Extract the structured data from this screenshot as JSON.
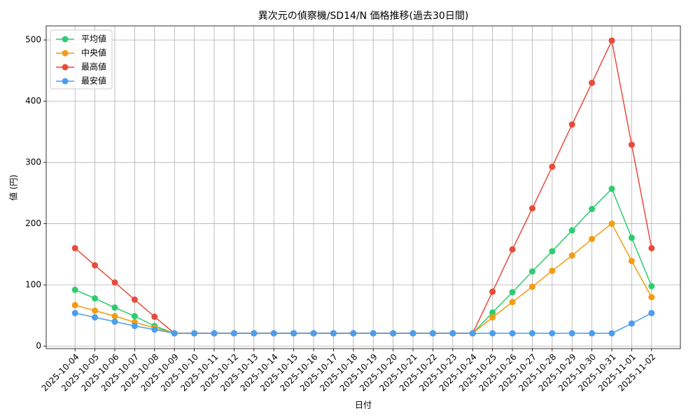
{
  "chart_data": {
    "type": "line",
    "title": "異次元の偵察機/SD14/N 価格推移(過去30日間)",
    "x_label": "日付",
    "y_label": "値 (円)",
    "categories": [
      "2025-10-04",
      "2025-10-05",
      "2025-10-06",
      "2025-10-07",
      "2025-10-08",
      "2025-10-09",
      "2025-10-10",
      "2025-10-11",
      "2025-10-12",
      "2025-10-13",
      "2025-10-14",
      "2025-10-15",
      "2025-10-16",
      "2025-10-17",
      "2025-10-18",
      "2025-10-19",
      "2025-10-20",
      "2025-10-21",
      "2025-10-22",
      "2025-10-23",
      "2025-10-24",
      "2025-10-25",
      "2025-10-26",
      "2025-10-27",
      "2025-10-28",
      "2025-10-29",
      "2025-10-30",
      "2025-10-31",
      "2025-11-01",
      "2025-11-02"
    ],
    "series": [
      {
        "name": "平均値",
        "color": "#2ecc71",
        "values": [
          92,
          78,
          63,
          49,
          33,
          21,
          21,
          21,
          21,
          21,
          21,
          21,
          21,
          21,
          21,
          21,
          21,
          21,
          21,
          21,
          21,
          55,
          88,
          122,
          155,
          189,
          224,
          257,
          177,
          98
        ]
      },
      {
        "name": "中央値",
        "color": "#f39c12",
        "values": [
          67,
          58,
          49,
          39,
          30,
          21,
          21,
          21,
          21,
          21,
          21,
          21,
          21,
          21,
          21,
          21,
          21,
          21,
          21,
          21,
          21,
          47,
          72,
          97,
          123,
          148,
          175,
          200,
          139,
          80
        ]
      },
      {
        "name": "最高値",
        "color": "#e74c3c",
        "values": [
          160,
          132,
          104,
          76,
          48,
          21,
          21,
          21,
          21,
          21,
          21,
          21,
          21,
          21,
          21,
          21,
          21,
          21,
          21,
          21,
          21,
          89,
          158,
          225,
          293,
          362,
          430,
          499,
          329,
          160
        ]
      },
      {
        "name": "最安値",
        "color": "#4a9eed",
        "values": [
          54,
          47,
          40,
          33,
          27,
          21,
          21,
          21,
          21,
          21,
          21,
          21,
          21,
          21,
          21,
          21,
          21,
          21,
          21,
          21,
          21,
          21,
          21,
          21,
          21,
          21,
          21,
          21,
          37,
          54
        ]
      }
    ],
    "ylim": [
      -4,
      523
    ],
    "yticks": [
      0,
      100,
      200,
      300,
      400,
      500
    ],
    "grid": true,
    "legend": "upper-left"
  }
}
